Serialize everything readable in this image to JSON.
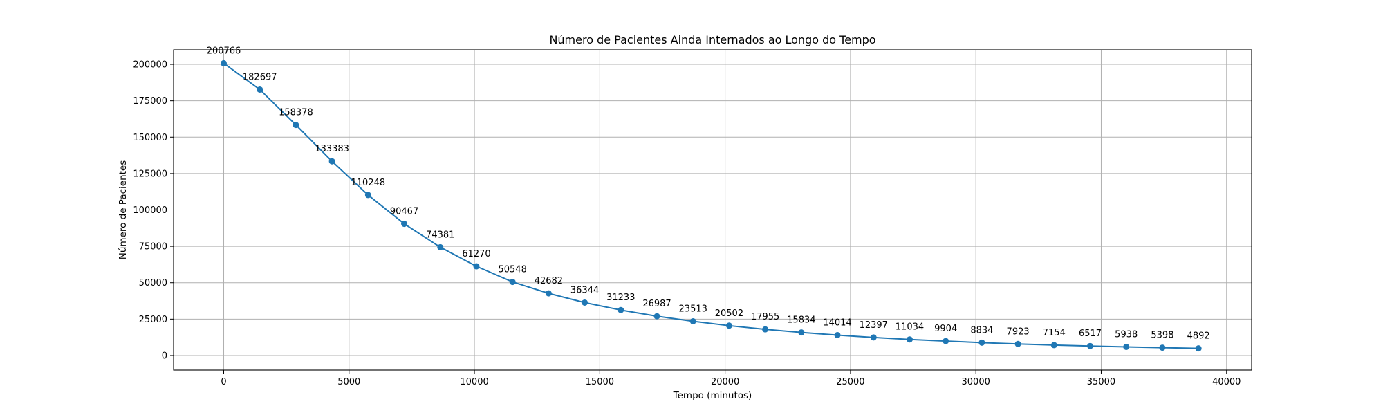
{
  "chart_data": {
    "type": "line",
    "title": "Número de Pacientes Ainda Internados ao Longo do Tempo",
    "xlabel": "Tempo (minutos)",
    "ylabel": "Número de Pacientes",
    "xlim": [
      -2000,
      41000
    ],
    "ylim": [
      -10000,
      210000
    ],
    "xticks": [
      0,
      5000,
      10000,
      15000,
      20000,
      25000,
      30000,
      35000,
      40000
    ],
    "yticks": [
      0,
      25000,
      50000,
      75000,
      100000,
      125000,
      150000,
      175000,
      200000
    ],
    "grid": true,
    "series": [
      {
        "color": "#1f77b4",
        "x": [
          0,
          1440,
          2880,
          4320,
          5760,
          7200,
          8640,
          10080,
          11520,
          12960,
          14400,
          15840,
          17280,
          18720,
          20160,
          21600,
          23040,
          24480,
          25920,
          27360,
          28800,
          30240,
          31680,
          33120,
          34560,
          36000,
          37440,
          38880
        ],
        "y": [
          200766,
          182697,
          158378,
          133383,
          110248,
          90467,
          74381,
          61270,
          50548,
          42682,
          36344,
          31233,
          26987,
          23513,
          20502,
          17955,
          15834,
          14014,
          12397,
          11034,
          9904,
          8834,
          7923,
          7154,
          6517,
          5938,
          5398,
          4892
        ],
        "labels": [
          "200766",
          "182697",
          "158378",
          "133383",
          "110248",
          "90467",
          "74381",
          "61270",
          "50548",
          "42682",
          "36344",
          "31233",
          "26987",
          "23513",
          "20502",
          "17955",
          "15834",
          "14014",
          "12397",
          "11034",
          "9904",
          "8834",
          "7923",
          "7154",
          "6517",
          "5938",
          "5398",
          "4892"
        ]
      }
    ]
  }
}
